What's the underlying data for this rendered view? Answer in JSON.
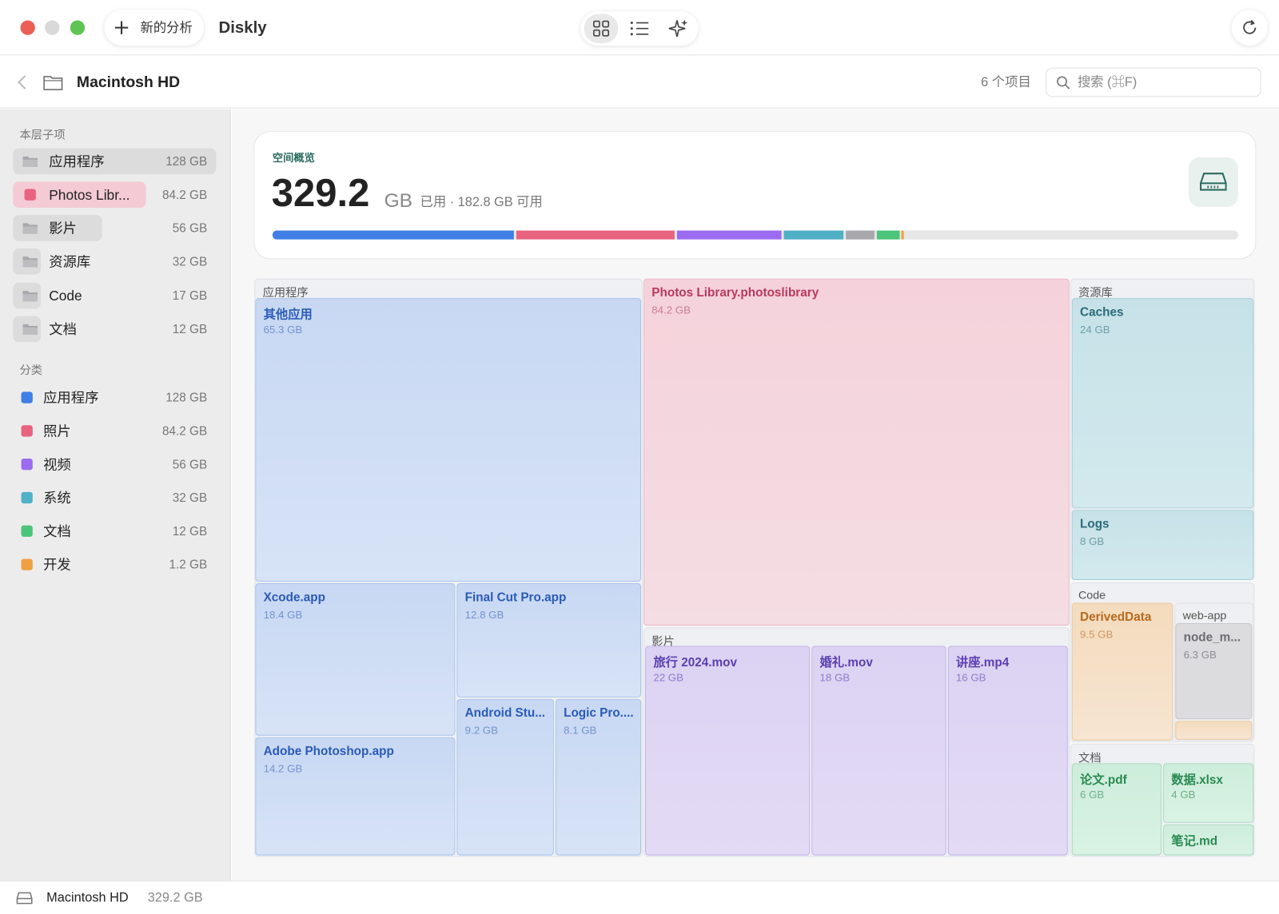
{
  "window": {
    "new_analysis": "新的分析",
    "app_name": "Diskly"
  },
  "toolbar": {
    "path": "Macintosh HD",
    "item_count": "6 个项目",
    "search_placeholder": "搜索 (⌘F)"
  },
  "sidebar": {
    "children_heading": "本层子项",
    "children": [
      {
        "name": "应用程序",
        "size": "128 GB"
      },
      {
        "name": "Photos Libr...",
        "size": "84.2 GB"
      },
      {
        "name": "影片",
        "size": "56 GB"
      },
      {
        "name": "资源库",
        "size": "32 GB"
      },
      {
        "name": "Code",
        "size": "17 GB"
      },
      {
        "name": "文档",
        "size": "12 GB"
      }
    ],
    "categories_heading": "分类",
    "categories": [
      {
        "name": "应用程序",
        "size": "128 GB"
      },
      {
        "name": "照片",
        "size": "84.2 GB"
      },
      {
        "name": "视频",
        "size": "56 GB"
      },
      {
        "name": "系统",
        "size": "32 GB"
      },
      {
        "name": "文档",
        "size": "12 GB"
      },
      {
        "name": "开发",
        "size": "1.2 GB"
      }
    ]
  },
  "overview": {
    "label": "空间概览",
    "used": "329.2",
    "unit": "GB",
    "detail": "已用 · 182.8 GB 可用"
  },
  "treemap": {
    "apps": {
      "title": "应用程序",
      "items": [
        {
          "name": "其他应用",
          "size": "65.3 GB"
        },
        {
          "name": "Xcode.app",
          "size": "18.4 GB"
        },
        {
          "name": "Final Cut Pro.app",
          "size": "12.8 GB"
        },
        {
          "name": "Adobe Photoshop.app",
          "size": "14.2 GB"
        },
        {
          "name": "Android Stu...",
          "size": "9.2 GB"
        },
        {
          "name": "Logic Pro....",
          "size": "8.1 GB"
        }
      ]
    },
    "photos": {
      "name": "Photos Library.photoslibrary",
      "size": "84.2 GB"
    },
    "movies": {
      "title": "影片",
      "items": [
        {
          "name": "旅行 2024.mov",
          "size": "22 GB"
        },
        {
          "name": "婚礼.mov",
          "size": "18 GB"
        },
        {
          "name": "讲座.mp4",
          "size": "16 GB"
        }
      ]
    },
    "library": {
      "title": "资源库",
      "items": [
        {
          "name": "Caches",
          "size": "24 GB"
        },
        {
          "name": "Logs",
          "size": "8 GB"
        }
      ]
    },
    "code": {
      "title": "Code",
      "items": [
        {
          "name": "DerivedData",
          "size": "9.5 GB"
        }
      ],
      "web_app": {
        "title": "web-app",
        "items": [
          {
            "name": "node_m...",
            "size": "6.3 GB"
          }
        ]
      }
    },
    "docs": {
      "title": "文档",
      "items": [
        {
          "name": "论文.pdf",
          "size": "6 GB"
        },
        {
          "name": "数据.xlsx",
          "size": "4 GB"
        },
        {
          "name": "笔记.md"
        }
      ]
    }
  },
  "status": {
    "disk": "Macintosh HD",
    "size": "329.2 GB"
  }
}
